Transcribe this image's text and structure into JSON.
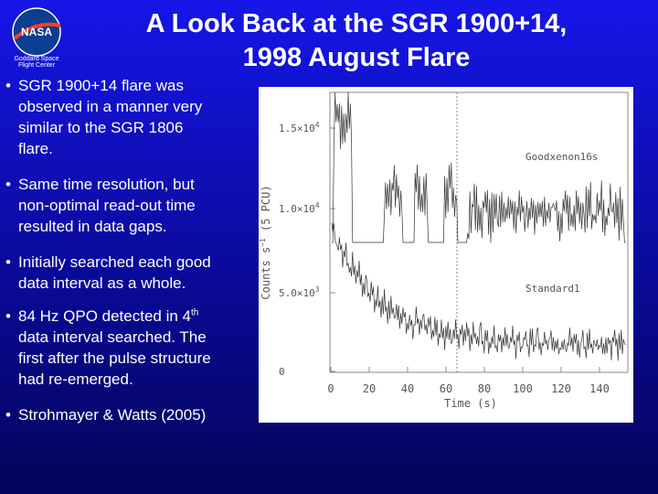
{
  "logo": {
    "mark": "NASA",
    "center": "Goddard Space",
    "center2": "Flight Center"
  },
  "title": {
    "line1": "A Look Back at the SGR 1900+14,",
    "line2": "1998 August Flare"
  },
  "bullets": [
    {
      "lines": [
        "SGR 1900+14 flare was",
        "observed in a manner very",
        "similar to the SGR 1806",
        "flare."
      ]
    },
    {
      "lines": [
        "Same time resolution, but",
        "non-optimal read-out time",
        "resulted in data gaps."
      ]
    },
    {
      "lines": [
        "Initially searched each good",
        "data interval as a whole."
      ]
    },
    {
      "lines": [
        {
          "text": "84 Hz QPO detected in 4",
          "sup": "th"
        },
        "data interval searched. The",
        "first after the pulse structure",
        "had re-emerged."
      ]
    },
    {
      "lines": [
        "Strohmayer & Watts (2005)"
      ]
    }
  ],
  "figure": {
    "y_axis_label": "Counts s",
    "y_axis_sup": "−1",
    "y_axis_rest": " (5 PCU)",
    "x_axis_label": "Time (s)",
    "annotations": [
      "Goodxenon16s",
      "Standard1"
    ],
    "yticks": [
      {
        "base": "1.5×10",
        "exp": "4"
      },
      {
        "base": "1.0×10",
        "exp": "4"
      },
      {
        "base": "5.0×10",
        "exp": "3"
      },
      {
        "base": "0",
        "exp": ""
      }
    ],
    "xticks": [
      "0",
      "20",
      "40",
      "60",
      "80",
      "100",
      "120",
      "140"
    ]
  }
}
